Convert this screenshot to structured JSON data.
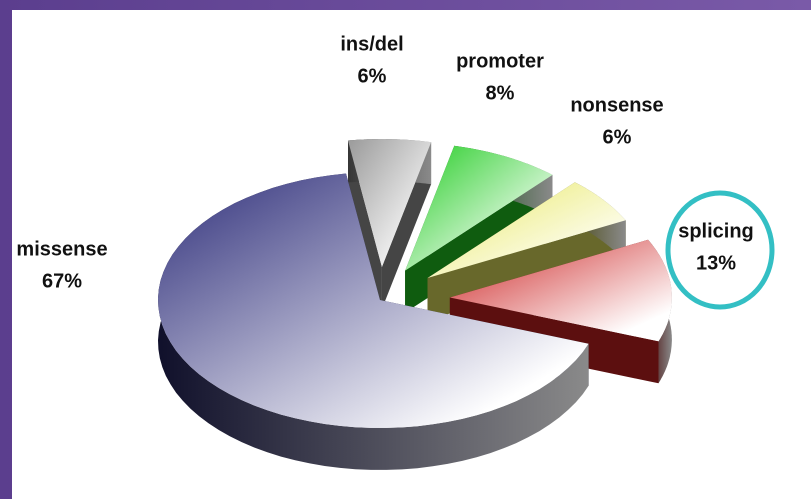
{
  "chart_data": {
    "type": "pie",
    "categories": [
      "missense",
      "ins/del",
      "promoter",
      "nonsense",
      "splicing"
    ],
    "values": [
      67,
      6,
      8,
      6,
      13
    ],
    "value_labels": [
      "67%",
      "6%",
      "8%",
      "6%",
      "13%"
    ],
    "colors": [
      "#2e2e7a",
      "#9a9a9a",
      "#22cc22",
      "#e8e860",
      "#cc2222"
    ]
  }
}
